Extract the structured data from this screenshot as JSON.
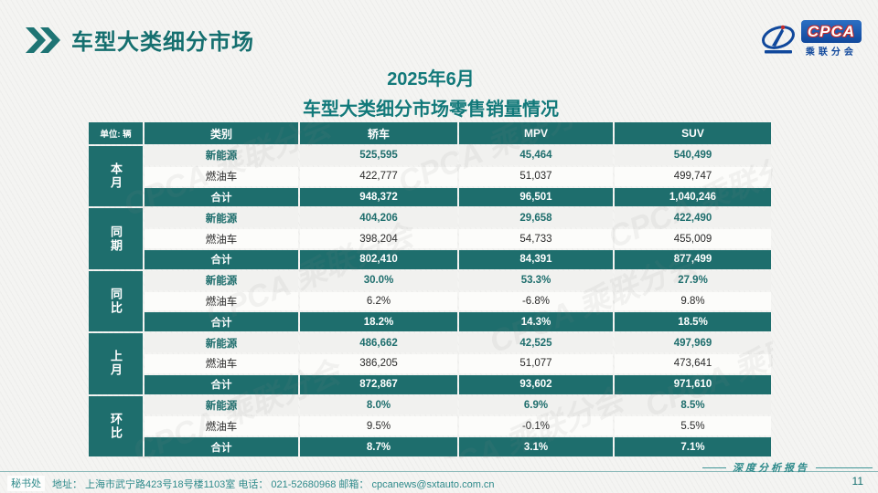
{
  "header": {
    "title": "车型大类细分市场"
  },
  "logo": {
    "name": "CPCA",
    "subtext": "乘联分会"
  },
  "subtitle": {
    "line1": "2025年6月",
    "line2": "车型大类细分市场零售销量情况"
  },
  "table": {
    "unit_label": "单位: 辆",
    "columns": [
      "类别",
      "轿车",
      "MPV",
      "SUV"
    ],
    "groups": [
      {
        "label": "本月",
        "rows": [
          {
            "type": "new_energy",
            "label": "新能源",
            "values": [
              "525,595",
              "45,464",
              "540,499"
            ]
          },
          {
            "type": "fuel",
            "label": "燃油车",
            "values": [
              "422,777",
              "51,037",
              "499,747"
            ]
          },
          {
            "type": "total",
            "label": "合计",
            "values": [
              "948,372",
              "96,501",
              "1,040,246"
            ]
          }
        ]
      },
      {
        "label": "同期",
        "rows": [
          {
            "type": "new_energy",
            "label": "新能源",
            "values": [
              "404,206",
              "29,658",
              "422,490"
            ]
          },
          {
            "type": "fuel",
            "label": "燃油车",
            "values": [
              "398,204",
              "54,733",
              "455,009"
            ]
          },
          {
            "type": "total",
            "label": "合计",
            "values": [
              "802,410",
              "84,391",
              "877,499"
            ]
          }
        ]
      },
      {
        "label": "同比",
        "rows": [
          {
            "type": "new_energy",
            "label": "新能源",
            "values": [
              "30.0%",
              "53.3%",
              "27.9%"
            ]
          },
          {
            "type": "fuel",
            "label": "燃油车",
            "values": [
              "6.2%",
              "-6.8%",
              "9.8%"
            ]
          },
          {
            "type": "total",
            "label": "合计",
            "values": [
              "18.2%",
              "14.3%",
              "18.5%"
            ]
          }
        ]
      },
      {
        "label": "上月",
        "rows": [
          {
            "type": "new_energy",
            "label": "新能源",
            "values": [
              "486,662",
              "42,525",
              "497,969"
            ]
          },
          {
            "type": "fuel",
            "label": "燃油车",
            "values": [
              "386,205",
              "51,077",
              "473,641"
            ]
          },
          {
            "type": "total",
            "label": "合计",
            "values": [
              "872,867",
              "93,602",
              "971,610"
            ]
          }
        ]
      },
      {
        "label": "环比",
        "rows": [
          {
            "type": "new_energy",
            "label": "新能源",
            "values": [
              "8.0%",
              "6.9%",
              "8.5%"
            ]
          },
          {
            "type": "fuel",
            "label": "燃油车",
            "values": [
              "9.5%",
              "-0.1%",
              "5.5%"
            ]
          },
          {
            "type": "total",
            "label": "合计",
            "values": [
              "8.7%",
              "3.1%",
              "7.1%"
            ]
          }
        ]
      }
    ]
  },
  "watermark": {
    "text": "CPCA 乘联分会"
  },
  "footer": {
    "secretariat": "秘书处",
    "contact": "地址： 上海市武宁路423号18号楼1103室  电话： 021-52680968   邮箱： cpcanews@sxtauto.com.cn",
    "report_label": "深度分析报告",
    "page_number": "11"
  },
  "colors": {
    "teal_table": "#1e6e6d",
    "teal_title": "#156f6f",
    "teal_footer": "#2e8a8b",
    "logo_blue": "#10489c",
    "logo_red": "#c42a2a",
    "background": "#f4f4f2"
  }
}
